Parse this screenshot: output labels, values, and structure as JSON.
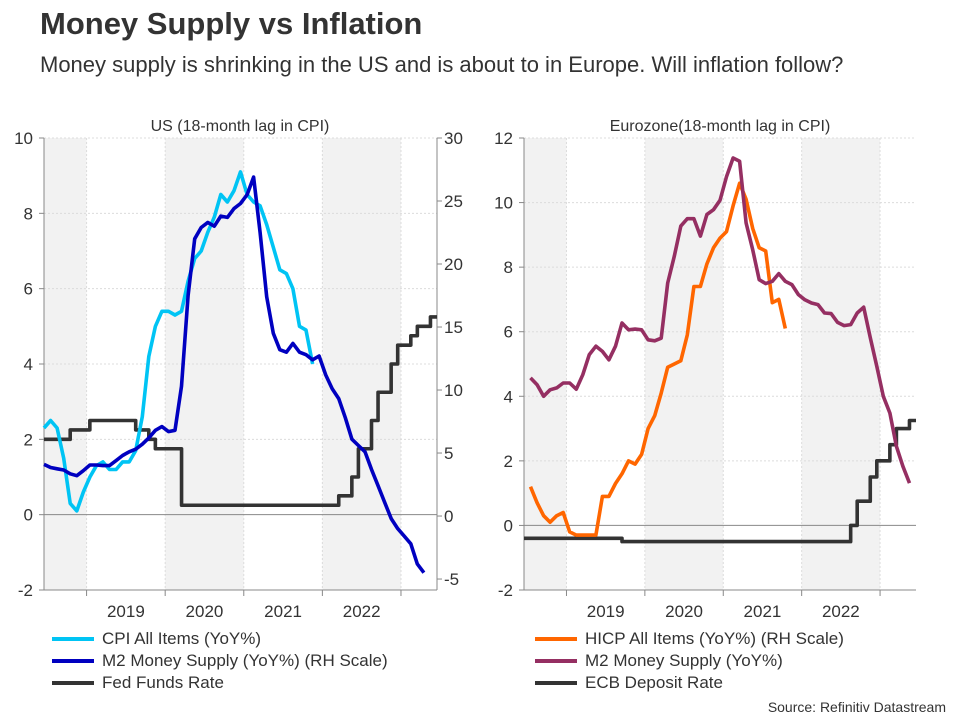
{
  "title": "Money Supply vs Inflation",
  "subtitle": "Money supply is shrinking in the US and is about to in Europe. Will inflation follow?",
  "source": "Source: Refinitiv Datastream",
  "chart_data": [
    {
      "type": "line",
      "title": "US (18-month lag in CPI)",
      "xlim": [
        "2018-06",
        "2023-06"
      ],
      "x_tick_labels": [
        "2019",
        "2020",
        "2021",
        "2022"
      ],
      "ylim": [
        -2,
        10
      ],
      "y_ticks": [
        -2,
        0,
        2,
        4,
        6,
        8,
        10
      ],
      "y2lim": [
        -5.87,
        30
      ],
      "y2_ticks": [
        -5,
        0,
        5,
        10,
        15,
        20,
        25,
        30
      ],
      "grid": true,
      "legend_position": "bottom-left",
      "series": [
        {
          "name": "CPI All Items (YoY%)",
          "color": "#00c4f4",
          "axis": "left",
          "shape": "line",
          "x": [
            "2018-06",
            "2018-07",
            "2018-08",
            "2018-09",
            "2018-10",
            "2018-11",
            "2018-12",
            "2019-01",
            "2019-02",
            "2019-03",
            "2019-04",
            "2019-05",
            "2019-06",
            "2019-07",
            "2019-08",
            "2019-09",
            "2019-10",
            "2019-11",
            "2019-12",
            "2020-01",
            "2020-02",
            "2020-03",
            "2020-04",
            "2020-05",
            "2020-06",
            "2020-07",
            "2020-08",
            "2020-09",
            "2020-10",
            "2020-11",
            "2020-12",
            "2021-01",
            "2021-02",
            "2021-03",
            "2021-04",
            "2021-05",
            "2021-06",
            "2021-07",
            "2021-08",
            "2021-09",
            "2021-10",
            "2021-11"
          ],
          "y": [
            2.3,
            2.5,
            2.3,
            1.5,
            0.3,
            0.1,
            0.6,
            1.0,
            1.3,
            1.4,
            1.2,
            1.2,
            1.4,
            1.4,
            1.7,
            2.6,
            4.2,
            5.0,
            5.4,
            5.4,
            5.3,
            5.4,
            6.2,
            6.8,
            7.0,
            7.5,
            7.9,
            8.5,
            8.3,
            8.6,
            9.1,
            8.5,
            8.3,
            8.2,
            7.7,
            7.1,
            6.5,
            6.4,
            6.0,
            5.0,
            4.9,
            4.0
          ]
        },
        {
          "name": "M2 Money Supply (YoY%) (RH Scale)",
          "color": "#0000c0",
          "axis": "right",
          "shape": "line",
          "x": [
            "2018-06",
            "2018-07",
            "2018-08",
            "2018-09",
            "2018-10",
            "2018-11",
            "2018-12",
            "2019-01",
            "2019-02",
            "2019-03",
            "2019-04",
            "2019-05",
            "2019-06",
            "2019-07",
            "2019-08",
            "2019-09",
            "2019-10",
            "2019-11",
            "2019-12",
            "2020-01",
            "2020-02",
            "2020-03",
            "2020-04",
            "2020-05",
            "2020-06",
            "2020-07",
            "2020-08",
            "2020-09",
            "2020-10",
            "2020-11",
            "2020-12",
            "2021-01",
            "2021-02",
            "2021-03",
            "2021-04",
            "2021-05",
            "2021-06",
            "2021-07",
            "2021-08",
            "2021-09",
            "2021-10",
            "2021-11",
            "2021-12",
            "2022-01",
            "2022-02",
            "2022-03",
            "2022-04",
            "2022-05",
            "2022-06",
            "2022-07",
            "2022-08",
            "2022-09",
            "2022-10",
            "2022-11",
            "2022-12",
            "2023-01",
            "2023-02",
            "2023-03",
            "2023-04"
          ],
          "y": [
            4.1,
            3.85,
            3.75,
            3.65,
            3.35,
            3.2,
            3.6,
            4.05,
            4.05,
            4.0,
            4.0,
            4.4,
            4.8,
            5.1,
            5.3,
            5.7,
            6.2,
            6.8,
            7.1,
            6.7,
            6.8,
            10.3,
            17.5,
            22.0,
            22.9,
            23.3,
            23.0,
            23.8,
            23.7,
            24.4,
            24.8,
            25.5,
            26.9,
            22.5,
            17.4,
            14.5,
            13.2,
            13.0,
            13.7,
            13.0,
            12.8,
            12.4,
            12.7,
            11.2,
            10.1,
            9.3,
            7.8,
            6.1,
            5.6,
            5.1,
            3.7,
            2.4,
            1.1,
            -0.2,
            -1.0,
            -1.6,
            -2.2,
            -3.8,
            -4.5
          ]
        },
        {
          "name": "Fed Funds Rate",
          "color": "#333333",
          "axis": "left",
          "shape": "step",
          "x": [
            "2018-06",
            "2018-10",
            "2019-01",
            "2019-08",
            "2019-10",
            "2019-11",
            "2020-03",
            "2022-03",
            "2022-05",
            "2022-06",
            "2022-08",
            "2022-09",
            "2022-11",
            "2022-12",
            "2023-02",
            "2023-03",
            "2023-05"
          ],
          "y": [
            2.0,
            2.25,
            2.5,
            2.25,
            2.0,
            1.75,
            0.25,
            0.5,
            1.0,
            1.75,
            2.5,
            3.25,
            4.0,
            4.5,
            4.75,
            5.0,
            5.25
          ]
        }
      ]
    },
    {
      "type": "line",
      "title": "Eurozone(18-month lag in CPI)",
      "xlim": [
        "2018-06",
        "2023-06"
      ],
      "x_tick_labels": [
        "2019",
        "2020",
        "2021",
        "2022"
      ],
      "ylim": [
        -2,
        12
      ],
      "y_ticks": [
        -2,
        0,
        2,
        4,
        6,
        8,
        10,
        12
      ],
      "grid": true,
      "legend_position": "bottom-left",
      "series": [
        {
          "name": "HICP All Items (YoY%) (RH Scale)",
          "color": "#ff6600",
          "axis": "left",
          "shape": "line",
          "x": [
            "2018-07",
            "2018-08",
            "2018-09",
            "2018-10",
            "2018-11",
            "2018-12",
            "2019-01",
            "2019-02",
            "2019-03",
            "2019-04",
            "2019-05",
            "2019-06",
            "2019-07",
            "2019-08",
            "2019-09",
            "2019-10",
            "2019-11",
            "2019-12",
            "2020-01",
            "2020-02",
            "2020-03",
            "2020-04",
            "2020-05",
            "2020-06",
            "2020-07",
            "2020-08",
            "2020-09",
            "2020-10",
            "2020-11",
            "2020-12",
            "2021-01",
            "2021-02",
            "2021-03",
            "2021-04",
            "2021-05",
            "2021-06",
            "2021-07",
            "2021-08",
            "2021-09",
            "2021-10"
          ],
          "y": [
            1.2,
            0.7,
            0.3,
            0.1,
            0.3,
            0.4,
            -0.2,
            -0.3,
            -0.3,
            -0.3,
            -0.3,
            0.9,
            0.9,
            1.3,
            1.6,
            2.0,
            1.9,
            2.2,
            3.0,
            3.4,
            4.1,
            4.9,
            5.0,
            5.1,
            5.9,
            7.4,
            7.4,
            8.1,
            8.6,
            8.9,
            9.1,
            9.9,
            10.6,
            10.1,
            9.2,
            8.6,
            8.5,
            6.9,
            7.0,
            6.1
          ]
        },
        {
          "name": "M2 Money Supply (YoY%)",
          "color": "#952f62",
          "axis": "left",
          "shape": "line",
          "x": [
            "2018-07",
            "2018-08",
            "2018-09",
            "2018-10",
            "2018-11",
            "2018-12",
            "2019-01",
            "2019-02",
            "2019-03",
            "2019-04",
            "2019-05",
            "2019-06",
            "2019-07",
            "2019-08",
            "2019-09",
            "2019-10",
            "2019-11",
            "2019-12",
            "2020-01",
            "2020-02",
            "2020-03",
            "2020-04",
            "2020-05",
            "2020-06",
            "2020-07",
            "2020-08",
            "2020-09",
            "2020-10",
            "2020-11",
            "2020-12",
            "2021-01",
            "2021-02",
            "2021-03",
            "2021-04",
            "2021-05",
            "2021-06",
            "2021-07",
            "2021-08",
            "2021-09",
            "2021-10",
            "2021-11",
            "2021-12",
            "2022-01",
            "2022-02",
            "2022-03",
            "2022-04",
            "2022-05",
            "2022-06",
            "2022-07",
            "2022-08",
            "2022-09",
            "2022-10",
            "2022-11",
            "2022-12",
            "2023-01",
            "2023-02",
            "2023-03",
            "2023-04",
            "2023-05"
          ],
          "y": [
            4.57,
            4.36,
            4.0,
            4.2,
            4.26,
            4.41,
            4.41,
            4.22,
            4.67,
            5.29,
            5.55,
            5.39,
            5.13,
            5.55,
            6.27,
            6.06,
            6.08,
            6.06,
            5.75,
            5.72,
            5.8,
            7.51,
            8.34,
            9.27,
            9.5,
            9.5,
            8.96,
            9.63,
            9.78,
            10.07,
            10.8,
            11.38,
            11.28,
            9.37,
            8.54,
            7.61,
            7.49,
            7.56,
            7.8,
            7.56,
            7.46,
            7.15,
            6.99,
            6.89,
            6.84,
            6.58,
            6.56,
            6.29,
            6.19,
            6.22,
            6.58,
            6.76,
            5.81,
            4.93,
            4.0,
            3.48,
            2.45,
            1.83,
            1.31
          ]
        },
        {
          "name": "ECB Deposit Rate",
          "color": "#333333",
          "axis": "left",
          "shape": "step",
          "x": [
            "2018-06",
            "2019-09",
            "2022-08",
            "2022-09",
            "2022-11",
            "2022-12",
            "2023-02",
            "2023-03",
            "2023-05"
          ],
          "y": [
            -0.4,
            -0.5,
            0,
            0.75,
            1.5,
            2.0,
            2.5,
            3.0,
            3.25
          ]
        }
      ]
    }
  ]
}
